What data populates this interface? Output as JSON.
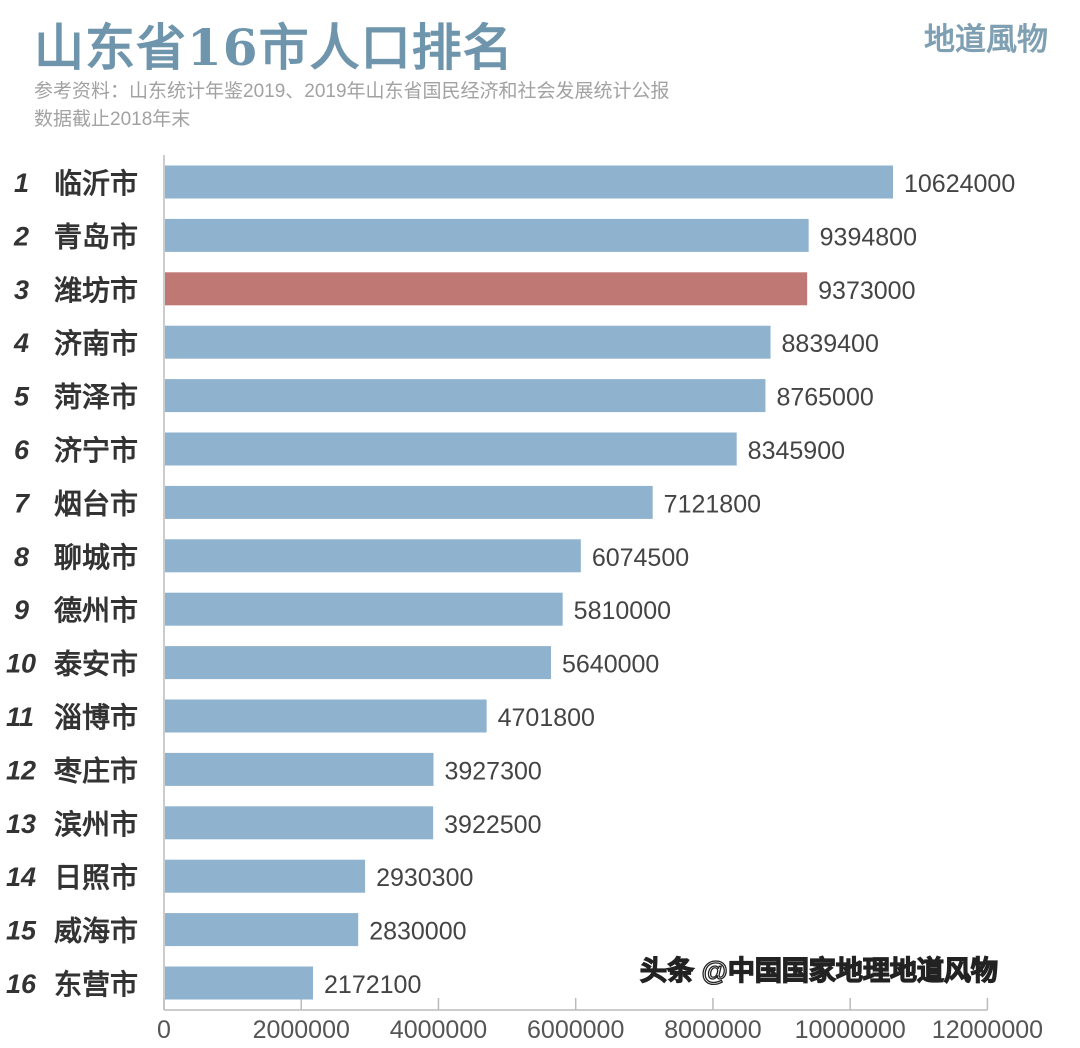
{
  "chart_data": {
    "type": "bar",
    "orientation": "horizontal",
    "title": "山东省16市人口排名",
    "subtitle": [
      "参考资料：山东统计年鉴2019、2019年山东省国民经济和社会发展统计公报",
      "数据截止2018年末"
    ],
    "brand": "地道風物",
    "watermark": "头条 @中国国家地理地道风物",
    "ranks": [
      "1",
      "2",
      "3",
      "4",
      "5",
      "6",
      "7",
      "8",
      "9",
      "10",
      "11",
      "12",
      "13",
      "14",
      "15",
      "16"
    ],
    "categories": [
      "临沂市",
      "青岛市",
      "潍坊市",
      "济南市",
      "菏泽市",
      "济宁市",
      "烟台市",
      "聊城市",
      "德州市",
      "泰安市",
      "淄博市",
      "枣庄市",
      "滨州市",
      "日照市",
      "威海市",
      "东营市"
    ],
    "values": [
      10624000,
      9394800,
      9373000,
      8839400,
      8765000,
      8345900,
      7121800,
      6074500,
      5810000,
      5640000,
      4701800,
      3927300,
      3922500,
      2930300,
      2830000,
      2172100
    ],
    "highlight_index": 2,
    "xlim": [
      0,
      12000000
    ],
    "x_ticks": [
      "0",
      "2000000",
      "4000000",
      "6000000",
      "8000000",
      "10000000",
      "12000000"
    ],
    "x_tick_values": [
      0,
      2000000,
      4000000,
      6000000,
      8000000,
      10000000,
      12000000
    ],
    "grid": false,
    "colors": {
      "bar": "#8fb3cf",
      "highlight": "#c07874",
      "title": "#6f95ad"
    }
  }
}
